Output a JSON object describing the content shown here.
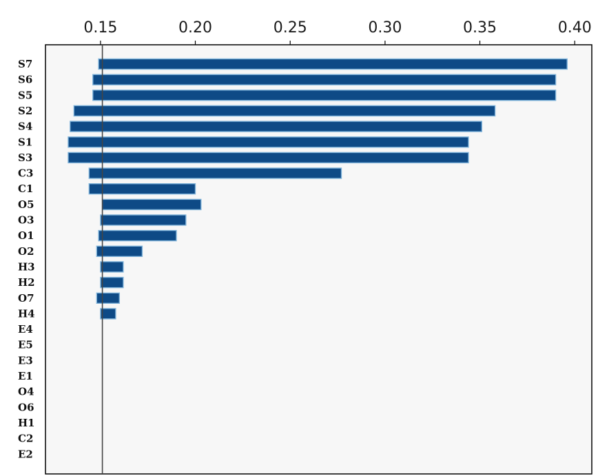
{
  "chart_data": {
    "type": "bar",
    "orientation": "horizontal",
    "categories": [
      "S7",
      "S6",
      "S5",
      "S2",
      "S4",
      "S1",
      "S3",
      "C3",
      "C1",
      "O5",
      "O3",
      "O1",
      "O2",
      "H3",
      "H2",
      "O7",
      "H4",
      "E4",
      "E5",
      "E3",
      "E1",
      "O4",
      "O6",
      "H1",
      "C2",
      "E2"
    ],
    "bars": [
      {
        "start": 0.149,
        "end": 0.396
      },
      {
        "start": 0.146,
        "end": 0.39
      },
      {
        "start": 0.146,
        "end": 0.39
      },
      {
        "start": 0.136,
        "end": 0.358
      },
      {
        "start": 0.134,
        "end": 0.351
      },
      {
        "start": 0.133,
        "end": 0.344
      },
      {
        "start": 0.133,
        "end": 0.344
      },
      {
        "start": 0.144,
        "end": 0.277
      },
      {
        "start": 0.144,
        "end": 0.2
      },
      {
        "start": 0.151,
        "end": 0.203
      },
      {
        "start": 0.15,
        "end": 0.195
      },
      {
        "start": 0.149,
        "end": 0.19
      },
      {
        "start": 0.148,
        "end": 0.172
      },
      {
        "start": 0.15,
        "end": 0.162
      },
      {
        "start": 0.15,
        "end": 0.162
      },
      {
        "start": 0.148,
        "end": 0.16
      },
      {
        "start": 0.15,
        "end": 0.158
      },
      null,
      null,
      null,
      null,
      null,
      null,
      null,
      null,
      null
    ],
    "xticks": [
      "0.15",
      "0.20",
      "0.25",
      "0.30",
      "0.35",
      "0.40"
    ],
    "xlim": [
      0.121,
      0.409
    ],
    "reference_line": 0.151,
    "xaxis_position": "top",
    "grid": false,
    "title": "",
    "xlabel": "",
    "ylabel": "",
    "colors": {
      "bar": "#0e4a86",
      "bar_edge": "#7fb3da",
      "frame": "#000000",
      "plot_bg": "#f7f7f7",
      "reference_line": "#444444"
    }
  }
}
